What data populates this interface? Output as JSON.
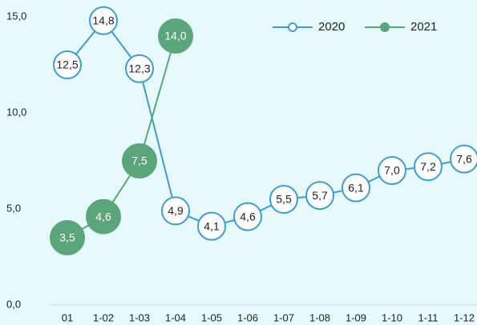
{
  "chart_data": {
    "type": "line",
    "categories": [
      "01",
      "1-02",
      "1-03",
      "1-04",
      "1-05",
      "1-06",
      "1-07",
      "1-08",
      "1-09",
      "1-10",
      "1-11",
      "1-12"
    ],
    "series": [
      {
        "name": "2020",
        "color": "#3d9dd0",
        "values": [
          12.5,
          14.8,
          12.3,
          4.9,
          4.1,
          4.6,
          5.5,
          5.7,
          6.1,
          7.0,
          7.2,
          7.6
        ],
        "value_labels": [
          "12,5",
          "14,8",
          "12,3",
          "4,9",
          "4,1",
          "4,6",
          "5,5",
          "5,7",
          "6,1",
          "7,0",
          "7,2",
          "7,6"
        ]
      },
      {
        "name": "2021",
        "color": "#5ba57c",
        "values": [
          3.5,
          4.6,
          7.5,
          14.0,
          null,
          null,
          null,
          null,
          null,
          null,
          null,
          null
        ],
        "value_labels": [
          "3,5",
          "4,6",
          "7,5",
          "14,0",
          null,
          null,
          null,
          null,
          null,
          null,
          null,
          null
        ]
      }
    ],
    "ylim": [
      0,
      15
    ],
    "yticks": [
      {
        "value": 0,
        "label": "0,0"
      },
      {
        "value": 5,
        "label": "5,0"
      },
      {
        "value": 10,
        "label": "10,0"
      },
      {
        "value": 15,
        "label": "15,0"
      }
    ],
    "legend": "top-right"
  }
}
